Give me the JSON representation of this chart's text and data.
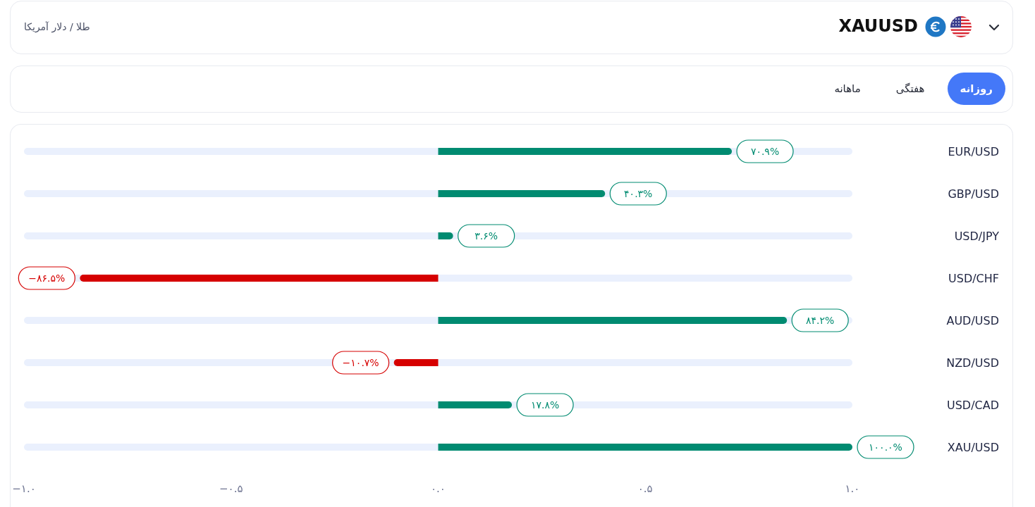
{
  "chart_data": {
    "type": "bar",
    "orientation": "horizontal",
    "title": "XAUUSD",
    "subtitle": "طلا / دلار آمریکا",
    "annotations": [
      "روزانه",
      "هفتگی",
      "ماهانه"
    ],
    "categories": [
      "EUR/USD",
      "GBP/USD",
      "USD/JPY",
      "USD/CHF",
      "AUD/USD",
      "NZD/USD",
      "USD/CAD",
      "XAU/USD"
    ],
    "values": [
      0.709,
      0.403,
      0.036,
      -0.865,
      0.842,
      -0.107,
      0.178,
      1.0
    ],
    "colors": [
      "#008b71",
      "#008b71",
      "#008b71",
      "#d60000",
      "#008b71",
      "#d60000",
      "#008b71",
      "#008b71"
    ],
    "value_labels": [
      "۷۰.۹%",
      "۴۰.۳%",
      "۳.۶%",
      "−۸۶.۵%",
      "۸۴.۲%",
      "−۱۰.۷%",
      "۱۷.۸%",
      "۱۰۰.۰%"
    ],
    "xlim": [
      -1,
      1
    ],
    "xticks": [
      {
        "value": -1,
        "label": "−۱.۰"
      },
      {
        "value": -0.5,
        "label": "−۰.۵"
      },
      {
        "value": 0,
        "label": "۰.۰"
      },
      {
        "value": 0.5,
        "label": "۰.۵"
      },
      {
        "value": 1,
        "label": "۱.۰"
      }
    ]
  }
}
